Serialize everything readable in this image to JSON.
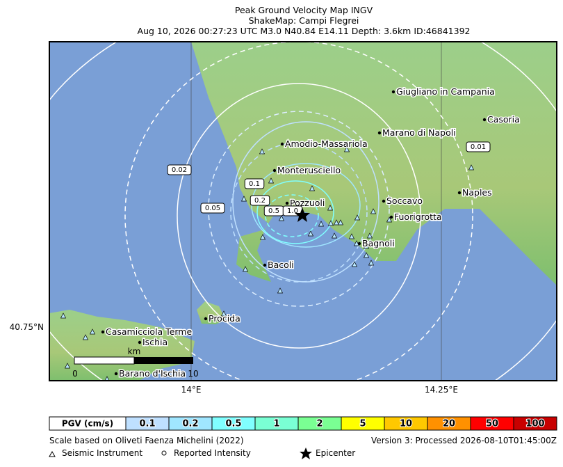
{
  "header": {
    "title": "Peak Ground Velocity Map INGV",
    "subtitle": "ShakeMap: Campi Flegrei",
    "details": "Aug 10, 2026 00:27:23 UTC M3.0 N40.84 E14.11 Depth: 3.6km ID:46841392"
  },
  "places": [
    "Giugliano in Campania",
    "Casoria",
    "Marano di Napoli",
    "Amodio-Massariola",
    "Monterusciello",
    "Naples",
    "Soccavo",
    "Pozzuoli",
    "Fuorigrotta",
    "Bagnoli",
    "Bacoli",
    "Procida",
    "Casamicciola Terme",
    "Ischia",
    "Barano d'Ischia"
  ],
  "contour_labels": [
    "0.01",
    "0.02",
    "0.05",
    "0.1",
    "0.2",
    "0.5",
    "1.0"
  ],
  "axes": {
    "lat": "40.75°N",
    "lon": [
      "14°E",
      "14.25°E"
    ]
  },
  "scalebar": {
    "unit": "km",
    "start": "0",
    "end": "10"
  },
  "legend": {
    "title": "PGV (cm/s)",
    "levels": [
      "0.1",
      "0.2",
      "0.5",
      "1",
      "2",
      "5",
      "10",
      "20",
      "50",
      "100"
    ]
  },
  "footer": {
    "source": "Scale based on Oliveti Faenza Michelini (2022)",
    "version": "Version 3: Processed 2026-08-10T01:45:00Z",
    "symbols": [
      "Seismic Instrument",
      "Reported Intensity",
      "Epicenter"
    ]
  }
}
